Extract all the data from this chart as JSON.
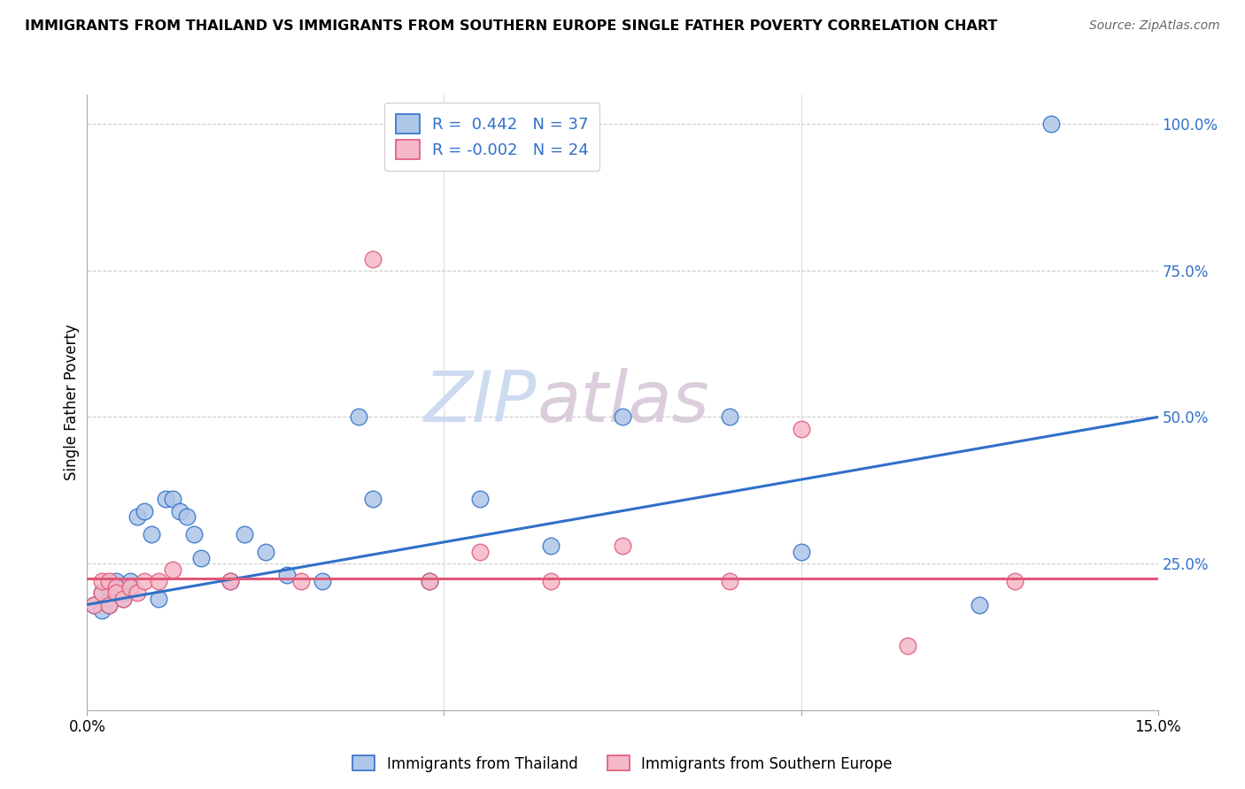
{
  "title": "IMMIGRANTS FROM THAILAND VS IMMIGRANTS FROM SOUTHERN EUROPE SINGLE FATHER POVERTY CORRELATION CHART",
  "source": "Source: ZipAtlas.com",
  "ylabel": "Single Father Poverty",
  "legend1_r": " 0.442",
  "legend1_n": "37",
  "legend2_r": "-0.002",
  "legend2_n": "24",
  "color_blue": "#aec6e8",
  "color_pink": "#f5b8c8",
  "line_blue": "#3070c8",
  "line_pink": "#e05878",
  "watermark_zip": "ZIP",
  "watermark_atlas": "atlas",
  "xmin": 0.0,
  "xmax": 0.15,
  "ymin": 0.0,
  "ymax": 1.05,
  "thailand_x": [
    0.001,
    0.002,
    0.002,
    0.003,
    0.003,
    0.003,
    0.004,
    0.004,
    0.005,
    0.005,
    0.006,
    0.006,
    0.007,
    0.008,
    0.009,
    0.01,
    0.011,
    0.012,
    0.013,
    0.014,
    0.015,
    0.016,
    0.02,
    0.022,
    0.025,
    0.028,
    0.033,
    0.038,
    0.04,
    0.048,
    0.055,
    0.065,
    0.075,
    0.09,
    0.1,
    0.125,
    0.135
  ],
  "thailand_y": [
    0.18,
    0.17,
    0.2,
    0.19,
    0.21,
    0.18,
    0.2,
    0.22,
    0.19,
    0.2,
    0.21,
    0.22,
    0.33,
    0.34,
    0.3,
    0.19,
    0.36,
    0.36,
    0.34,
    0.33,
    0.3,
    0.26,
    0.22,
    0.3,
    0.27,
    0.23,
    0.22,
    0.5,
    0.36,
    0.22,
    0.36,
    0.28,
    0.5,
    0.5,
    0.27,
    0.18,
    1.0
  ],
  "se_x": [
    0.001,
    0.002,
    0.002,
    0.003,
    0.003,
    0.004,
    0.004,
    0.005,
    0.006,
    0.007,
    0.008,
    0.01,
    0.012,
    0.02,
    0.03,
    0.04,
    0.048,
    0.055,
    0.065,
    0.075,
    0.09,
    0.1,
    0.115,
    0.13
  ],
  "se_y": [
    0.18,
    0.2,
    0.22,
    0.18,
    0.22,
    0.21,
    0.2,
    0.19,
    0.21,
    0.2,
    0.22,
    0.22,
    0.24,
    0.22,
    0.22,
    0.77,
    0.22,
    0.27,
    0.22,
    0.28,
    0.22,
    0.48,
    0.11,
    0.22
  ],
  "blue_trend_x0": 0.0,
  "blue_trend_y0": 0.18,
  "blue_trend_x1": 0.15,
  "blue_trend_y1": 0.5,
  "pink_trend_y": 0.225
}
